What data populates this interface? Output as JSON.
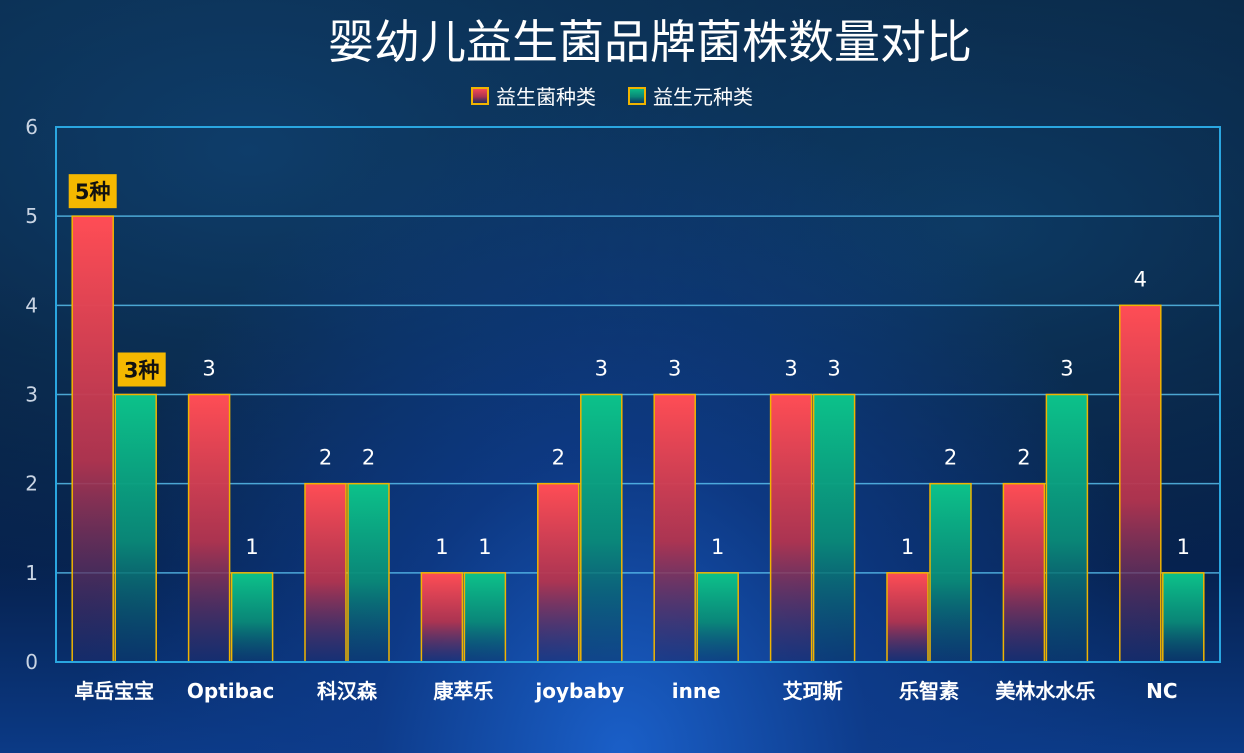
{
  "chart_data": {
    "type": "bar",
    "title": "婴幼儿益生菌品牌菌株数量对比",
    "categories": [
      "卓岳宝宝",
      "Optibac",
      "科汉森",
      "康萃乐",
      "joybaby",
      "inne",
      "艾珂斯",
      "乐智素",
      "美林水水乐",
      "NC"
    ],
    "series": [
      {
        "name": "益生菌种类",
        "values": [
          5,
          3,
          2,
          1,
          2,
          3,
          3,
          1,
          2,
          4
        ],
        "color": "#ff4d55"
      },
      {
        "name": "益生元种类",
        "values": [
          3,
          1,
          2,
          1,
          3,
          1,
          3,
          2,
          3,
          1
        ],
        "color": "#0cc28a"
      }
    ],
    "ylim": [
      0,
      6
    ],
    "yticks": [
      0,
      1,
      2,
      3,
      4,
      5,
      6
    ],
    "grid": true,
    "legend_position": "top-center",
    "bar_border_color": "#f0b400",
    "callouts": [
      {
        "category_index": 0,
        "series_index": 0,
        "text": "5种"
      },
      {
        "category_index": 0,
        "series_index": 1,
        "text": "3种"
      }
    ]
  }
}
